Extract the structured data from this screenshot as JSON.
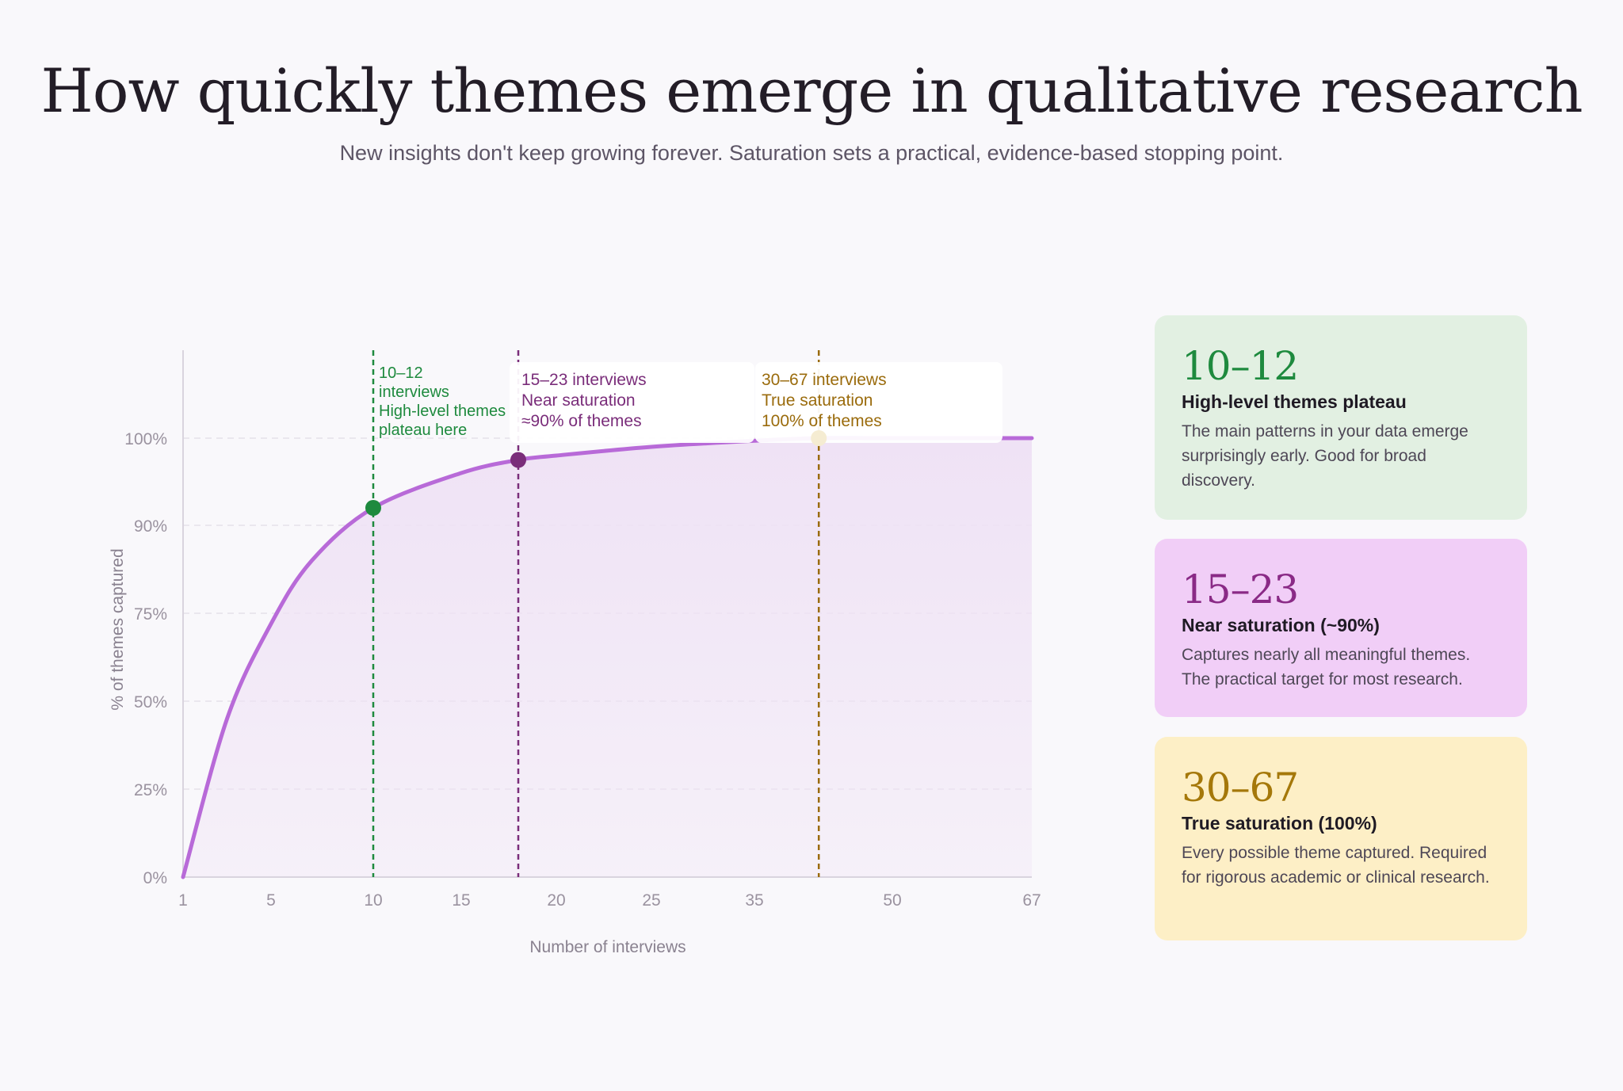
{
  "header": {
    "title": "How quickly themes emerge in qualitative research",
    "subtitle": "New insights don't keep growing forever. Saturation sets a practical, evidence-based stopping point."
  },
  "chart_data": {
    "type": "area",
    "xlabel": "Number of interviews",
    "ylabel": "% of themes captured",
    "x_ticks": [
      "1",
      "5",
      "10",
      "15",
      "20",
      "25",
      "35",
      "50",
      "67"
    ],
    "y_ticks": [
      "0%",
      "25%",
      "50%",
      "75%",
      "90%",
      "100%"
    ],
    "grid": true,
    "series": [
      {
        "x": [
          1,
          3,
          5,
          7,
          10,
          15,
          18,
          20,
          25,
          35,
          42,
          50,
          67
        ],
        "values": [
          0,
          45,
          72,
          84,
          92,
          96,
          97.5,
          98,
          99,
          99.7,
          100,
          100,
          100
        ]
      }
    ],
    "markers": [
      {
        "x": 10,
        "y": 92,
        "color": "#1e8a3e"
      },
      {
        "x": 18,
        "y": 97.5,
        "color": "#7a2d7a"
      },
      {
        "x": 42,
        "y": 100,
        "color": "#f5ecd2"
      }
    ],
    "annotations": [
      {
        "lines": [
          "10–12",
          "interviews",
          "High-level themes",
          "plateau here"
        ],
        "color": "#1e8a3e"
      },
      {
        "lines": [
          "15–23 interviews",
          "Near saturation",
          "≈90% of themes"
        ],
        "color": "#7a2d7a"
      },
      {
        "lines": [
          "30–67 interviews",
          "True saturation",
          "100% of themes"
        ],
        "color": "#9a6b0c"
      }
    ],
    "colors": {
      "curve": "#b86ad8",
      "fill": "#efe2f5",
      "axis": "#d9d4de",
      "grid": "#e6e1ea",
      "tick_text": "#9a929f"
    }
  },
  "cards": [
    {
      "range": "10–12",
      "heading": "High-level themes plateau",
      "body": "The main patterns in your data emerge surprisingly early. Good for broad discovery.",
      "color": "#1e8a3e",
      "background": "#e2f0e2"
    },
    {
      "range": "15–23",
      "heading": "Near saturation (~90%)",
      "body": "Captures nearly all meaningful themes. The practical target for most research.",
      "color": "#8a2a86",
      "background": "#f1cef7"
    },
    {
      "range": "30–67",
      "heading": "True saturation (100%)",
      "body": "Every possible theme captured. Required for rigorous academic or clinical research.",
      "color": "#a5780a",
      "background": "#fdefc6"
    }
  ]
}
